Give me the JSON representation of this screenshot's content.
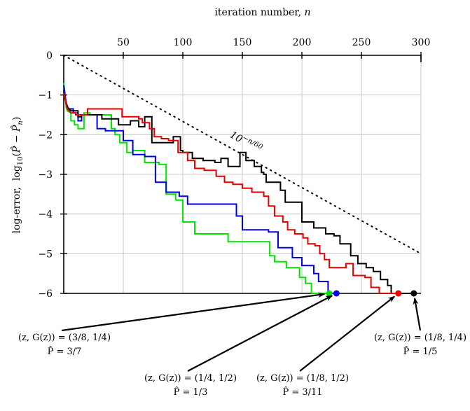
{
  "chart_data": {
    "type": "line",
    "xlabel": "iteration number, n",
    "ylabel": "log-error, log10(P̂ − P̂n)",
    "xlim": [
      0,
      300
    ],
    "ylim": [
      -6,
      0
    ],
    "xticks": [
      50,
      100,
      150,
      200,
      250,
      300
    ],
    "yticks": [
      0,
      -1,
      -2,
      -3,
      -4,
      -5,
      -6
    ],
    "xtick_labels": [
      "50",
      "100",
      "150",
      "200",
      "250",
      "300"
    ],
    "ytick_labels": [
      "0",
      "−1",
      "−2",
      "−3",
      "−4",
      "−5",
      "−6"
    ],
    "grid": true,
    "reference_line": {
      "label": "10^(−n/60)",
      "x": [
        0,
        300
      ],
      "y": [
        0,
        -5
      ],
      "style": "dotted",
      "color": "#000000"
    },
    "series": [
      {
        "color": "#00e600",
        "end_point": [
          223,
          -6
        ],
        "points": [
          [
            0,
            -0.7
          ],
          [
            2,
            -1.3
          ],
          [
            3,
            -1.4
          ],
          [
            6,
            -1.45
          ],
          [
            6,
            -1.65
          ],
          [
            9,
            -1.65
          ],
          [
            9,
            -1.75
          ],
          [
            12,
            -1.75
          ],
          [
            12,
            -1.85
          ],
          [
            17,
            -1.85
          ],
          [
            17,
            -1.45
          ],
          [
            22,
            -1.45
          ],
          [
            22,
            -1.5
          ],
          [
            40,
            -1.5
          ],
          [
            40,
            -1.85
          ],
          [
            43,
            -1.85
          ],
          [
            43,
            -2.0
          ],
          [
            47,
            -2.0
          ],
          [
            47,
            -2.2
          ],
          [
            53,
            -2.2
          ],
          [
            53,
            -2.45
          ],
          [
            58,
            -2.45
          ],
          [
            58,
            -2.4
          ],
          [
            68,
            -2.4
          ],
          [
            68,
            -2.7
          ],
          [
            80,
            -2.7
          ],
          [
            80,
            -2.75
          ],
          [
            86,
            -2.75
          ],
          [
            86,
            -3.5
          ],
          [
            94,
            -3.5
          ],
          [
            94,
            -3.65
          ],
          [
            100,
            -3.65
          ],
          [
            100,
            -4.2
          ],
          [
            110,
            -4.2
          ],
          [
            110,
            -4.5
          ],
          [
            138,
            -4.5
          ],
          [
            138,
            -4.7
          ],
          [
            173,
            -4.7
          ],
          [
            173,
            -5.05
          ],
          [
            177,
            -5.05
          ],
          [
            177,
            -5.2
          ],
          [
            187,
            -5.2
          ],
          [
            187,
            -5.35
          ],
          [
            198,
            -5.35
          ],
          [
            198,
            -5.6
          ],
          [
            203,
            -5.6
          ],
          [
            203,
            -5.75
          ],
          [
            208,
            -5.75
          ],
          [
            208,
            -6.0
          ],
          [
            223,
            -6.0
          ]
        ]
      },
      {
        "color": "#0000e6",
        "end_point": [
          229,
          -6
        ],
        "points": [
          [
            0,
            -0.75
          ],
          [
            2,
            -1.2
          ],
          [
            4,
            -1.35
          ],
          [
            8,
            -1.35
          ],
          [
            8,
            -1.45
          ],
          [
            12,
            -1.45
          ],
          [
            12,
            -1.65
          ],
          [
            15,
            -1.65
          ],
          [
            15,
            -1.5
          ],
          [
            28,
            -1.5
          ],
          [
            28,
            -1.85
          ],
          [
            35,
            -1.85
          ],
          [
            35,
            -1.9
          ],
          [
            50,
            -1.9
          ],
          [
            50,
            -2.15
          ],
          [
            58,
            -2.15
          ],
          [
            58,
            -2.5
          ],
          [
            68,
            -2.5
          ],
          [
            68,
            -2.55
          ],
          [
            77,
            -2.55
          ],
          [
            77,
            -3.2
          ],
          [
            86,
            -3.2
          ],
          [
            86,
            -3.45
          ],
          [
            97,
            -3.45
          ],
          [
            97,
            -3.55
          ],
          [
            104,
            -3.55
          ],
          [
            104,
            -3.75
          ],
          [
            145,
            -3.75
          ],
          [
            145,
            -4.05
          ],
          [
            150,
            -4.05
          ],
          [
            150,
            -4.4
          ],
          [
            172,
            -4.4
          ],
          [
            172,
            -4.45
          ],
          [
            180,
            -4.45
          ],
          [
            180,
            -4.85
          ],
          [
            192,
            -4.85
          ],
          [
            192,
            -5.1
          ],
          [
            200,
            -5.1
          ],
          [
            200,
            -5.3
          ],
          [
            210,
            -5.3
          ],
          [
            210,
            -5.5
          ],
          [
            214,
            -5.5
          ],
          [
            214,
            -5.7
          ],
          [
            222,
            -5.7
          ],
          [
            222,
            -6.0
          ],
          [
            229,
            -6.0
          ]
        ]
      },
      {
        "color": "#000000",
        "end_point": [
          294,
          -6
        ],
        "points": [
          [
            0,
            -0.95
          ],
          [
            3,
            -1.3
          ],
          [
            6,
            -1.4
          ],
          [
            12,
            -1.4
          ],
          [
            12,
            -1.55
          ],
          [
            15,
            -1.55
          ],
          [
            15,
            -1.5
          ],
          [
            32,
            -1.5
          ],
          [
            32,
            -1.6
          ],
          [
            46,
            -1.6
          ],
          [
            46,
            -1.75
          ],
          [
            56,
            -1.75
          ],
          [
            56,
            -1.65
          ],
          [
            63,
            -1.65
          ],
          [
            63,
            -1.8
          ],
          [
            68,
            -1.8
          ],
          [
            68,
            -1.55
          ],
          [
            74,
            -1.55
          ],
          [
            74,
            -2.2
          ],
          [
            92,
            -2.2
          ],
          [
            92,
            -2.05
          ],
          [
            98,
            -2.05
          ],
          [
            98,
            -2.4
          ],
          [
            100,
            -2.4
          ],
          [
            100,
            -2.45
          ],
          [
            108,
            -2.45
          ],
          [
            108,
            -2.6
          ],
          [
            117,
            -2.6
          ],
          [
            117,
            -2.65
          ],
          [
            127,
            -2.65
          ],
          [
            127,
            -2.7
          ],
          [
            132,
            -2.7
          ],
          [
            132,
            -2.6
          ],
          [
            138,
            -2.6
          ],
          [
            138,
            -2.8
          ],
          [
            148,
            -2.8
          ],
          [
            148,
            -2.45
          ],
          [
            153,
            -2.45
          ],
          [
            153,
            -2.65
          ],
          [
            160,
            -2.65
          ],
          [
            160,
            -2.8
          ],
          [
            166,
            -2.8
          ],
          [
            166,
            -2.95
          ],
          [
            168,
            -2.95
          ],
          [
            168,
            -3.0
          ],
          [
            170,
            -3.0
          ],
          [
            170,
            -3.2
          ],
          [
            182,
            -3.2
          ],
          [
            182,
            -3.4
          ],
          [
            186,
            -3.4
          ],
          [
            186,
            -3.7
          ],
          [
            200,
            -3.7
          ],
          [
            200,
            -4.2
          ],
          [
            210,
            -4.2
          ],
          [
            210,
            -4.35
          ],
          [
            220,
            -4.35
          ],
          [
            220,
            -4.5
          ],
          [
            227,
            -4.5
          ],
          [
            227,
            -4.55
          ],
          [
            232,
            -4.55
          ],
          [
            232,
            -4.75
          ],
          [
            241,
            -4.75
          ],
          [
            241,
            -5.05
          ],
          [
            247,
            -5.05
          ],
          [
            247,
            -5.25
          ],
          [
            254,
            -5.25
          ],
          [
            254,
            -5.35
          ],
          [
            260,
            -5.35
          ],
          [
            260,
            -5.45
          ],
          [
            266,
            -5.45
          ],
          [
            266,
            -5.65
          ],
          [
            272,
            -5.65
          ],
          [
            272,
            -5.8
          ],
          [
            275,
            -5.8
          ],
          [
            275,
            -6.0
          ],
          [
            294,
            -6.0
          ]
        ]
      },
      {
        "color": "#e60000",
        "end_point": [
          281,
          -6
        ],
        "points": [
          [
            0,
            -0.95
          ],
          [
            3,
            -1.35
          ],
          [
            6,
            -1.45
          ],
          [
            10,
            -1.45
          ],
          [
            10,
            -1.5
          ],
          [
            20,
            -1.5
          ],
          [
            20,
            -1.35
          ],
          [
            45,
            -1.35
          ],
          [
            45,
            -1.35
          ],
          [
            49,
            -1.35
          ],
          [
            49,
            -1.55
          ],
          [
            63,
            -1.55
          ],
          [
            63,
            -1.6
          ],
          [
            66,
            -1.6
          ],
          [
            66,
            -1.7
          ],
          [
            72,
            -1.7
          ],
          [
            72,
            -1.85
          ],
          [
            76,
            -1.85
          ],
          [
            76,
            -2.05
          ],
          [
            82,
            -2.05
          ],
          [
            82,
            -2.1
          ],
          [
            88,
            -2.1
          ],
          [
            88,
            -2.15
          ],
          [
            96,
            -2.15
          ],
          [
            96,
            -2.45
          ],
          [
            104,
            -2.45
          ],
          [
            104,
            -2.65
          ],
          [
            110,
            -2.65
          ],
          [
            110,
            -2.85
          ],
          [
            118,
            -2.85
          ],
          [
            118,
            -2.9
          ],
          [
            128,
            -2.9
          ],
          [
            128,
            -3.05
          ],
          [
            135,
            -3.05
          ],
          [
            135,
            -3.2
          ],
          [
            142,
            -3.2
          ],
          [
            142,
            -3.25
          ],
          [
            150,
            -3.25
          ],
          [
            150,
            -3.35
          ],
          [
            158,
            -3.35
          ],
          [
            158,
            -3.45
          ],
          [
            168,
            -3.45
          ],
          [
            168,
            -3.55
          ],
          [
            172,
            -3.55
          ],
          [
            172,
            -3.8
          ],
          [
            177,
            -3.8
          ],
          [
            177,
            -4.05
          ],
          [
            184,
            -4.05
          ],
          [
            184,
            -4.2
          ],
          [
            188,
            -4.2
          ],
          [
            188,
            -4.4
          ],
          [
            194,
            -4.4
          ],
          [
            194,
            -4.5
          ],
          [
            201,
            -4.5
          ],
          [
            201,
            -4.6
          ],
          [
            205,
            -4.6
          ],
          [
            205,
            -4.75
          ],
          [
            211,
            -4.75
          ],
          [
            211,
            -4.8
          ],
          [
            215,
            -4.8
          ],
          [
            215,
            -5.0
          ],
          [
            219,
            -5.0
          ],
          [
            219,
            -5.15
          ],
          [
            223,
            -5.15
          ],
          [
            223,
            -5.35
          ],
          [
            237,
            -5.35
          ],
          [
            237,
            -5.25
          ],
          [
            243,
            -5.25
          ],
          [
            243,
            -5.55
          ],
          [
            253,
            -5.55
          ],
          [
            253,
            -5.6
          ],
          [
            258,
            -5.6
          ],
          [
            258,
            -5.85
          ],
          [
            265,
            -5.85
          ],
          [
            265,
            -6.0
          ],
          [
            281,
            -6.0
          ]
        ]
      }
    ],
    "annotations": [
      {
        "line1": "(z, G(z)) = (3/8, 1/4)",
        "line2": "P̂ = 3/7",
        "target_series": 0
      },
      {
        "line1": "(z, G(z)) = (1/4, 1/2)",
        "line2": "P̂ = 1/3",
        "target_series": 1
      },
      {
        "line1": "(z, G(z)) = (1/8, 1/2)",
        "line2": "P̂ = 3/11",
        "target_series": 3
      },
      {
        "line1": "(z, G(z)) = (1/8, 1/4)",
        "line2": "P̂ = 1/5",
        "target_series": 2
      }
    ]
  }
}
